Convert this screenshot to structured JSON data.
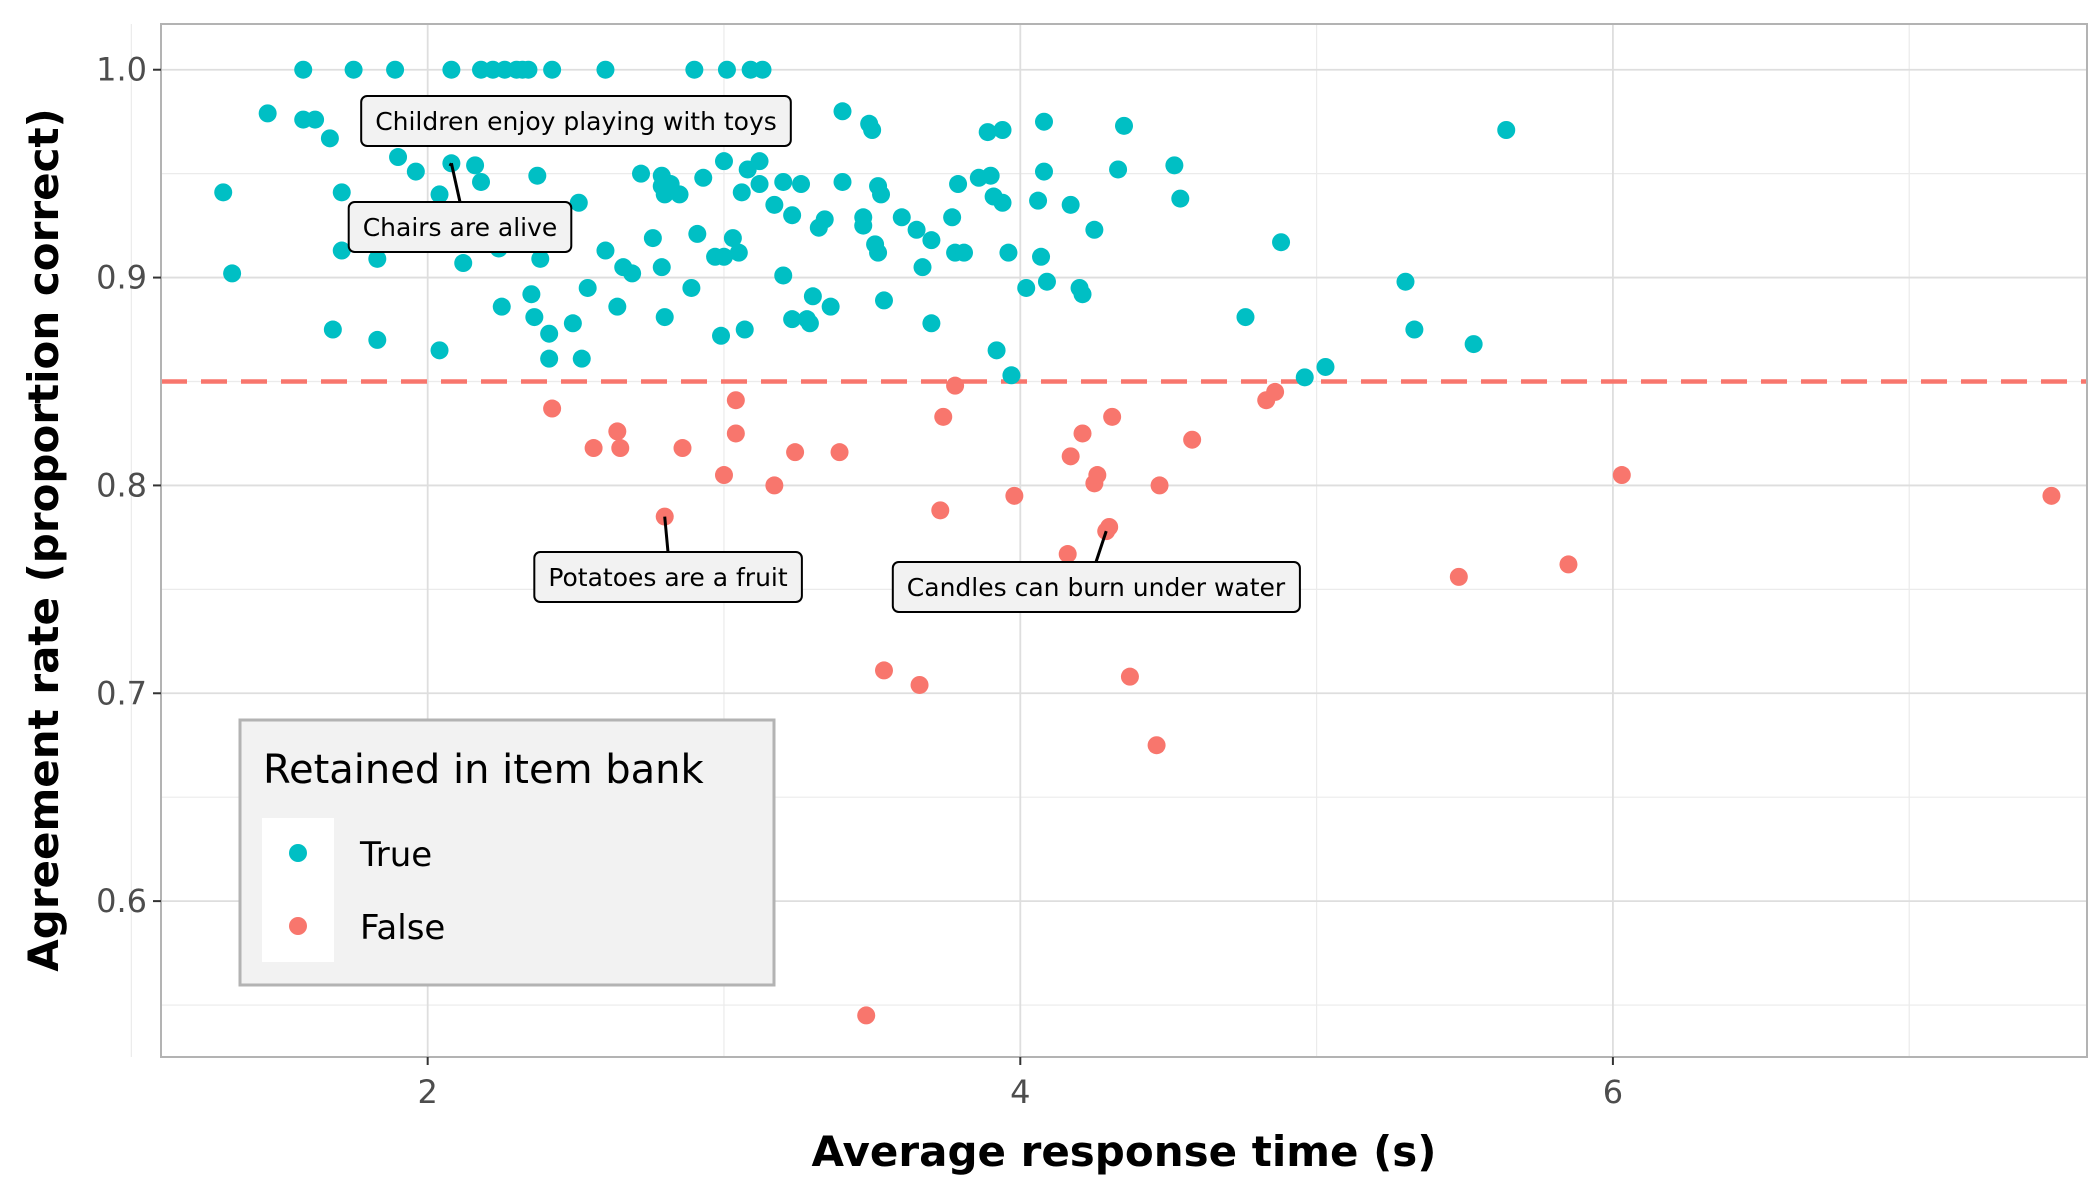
{
  "chart_data": {
    "type": "scatter",
    "title": "",
    "xlabel": "Average response time (s)",
    "ylabel": "Agreement rate (proportion correct)",
    "xlim": [
      1.1,
      7.6
    ],
    "ylim": [
      0.525,
      1.022
    ],
    "xticks": [
      2,
      4,
      6
    ],
    "xtick_labels": [
      "2",
      "4",
      "6"
    ],
    "yticks": [
      0.6,
      0.7,
      0.8,
      0.9,
      1.0
    ],
    "ytick_labels": [
      "0.6",
      "0.7",
      "0.8",
      "0.9",
      "1.0"
    ],
    "grid": true,
    "threshold": {
      "y": 0.85,
      "color": "#f8766d",
      "style": "dashed"
    },
    "legend": {
      "title": "Retained in item bank",
      "position": "bottom-left"
    },
    "series": [
      {
        "name": "True",
        "color": "#00bfc4",
        "points": [
          [
            1.31,
            0.941
          ],
          [
            1.34,
            0.902
          ],
          [
            1.46,
            0.979
          ],
          [
            1.58,
            1.0
          ],
          [
            1.58,
            0.976
          ],
          [
            1.62,
            0.976
          ],
          [
            1.67,
            0.967
          ],
          [
            1.68,
            0.875
          ],
          [
            1.71,
            0.941
          ],
          [
            1.71,
            0.913
          ],
          [
            1.75,
            1.0
          ],
          [
            1.83,
            0.909
          ],
          [
            1.83,
            0.87
          ],
          [
            1.89,
            1.0
          ],
          [
            1.9,
            0.958
          ],
          [
            1.96,
            0.951
          ],
          [
            2.04,
            0.865
          ],
          [
            2.04,
            0.94
          ],
          [
            2.08,
            1.0
          ],
          [
            2.08,
            0.955
          ],
          [
            2.12,
            0.907
          ],
          [
            2.16,
            0.954
          ],
          [
            2.18,
            0.946
          ],
          [
            2.18,
            1.0
          ],
          [
            2.22,
            1.0
          ],
          [
            2.24,
            0.914
          ],
          [
            2.25,
            0.886
          ],
          [
            2.26,
            1.0
          ],
          [
            2.3,
            1.0
          ],
          [
            2.32,
            1.0
          ],
          [
            2.34,
            1.0
          ],
          [
            2.35,
            0.892
          ],
          [
            2.36,
            0.881
          ],
          [
            2.37,
            0.949
          ],
          [
            2.38,
            0.909
          ],
          [
            2.41,
            0.861
          ],
          [
            2.41,
            0.873
          ],
          [
            2.42,
            1.0
          ],
          [
            2.49,
            0.878
          ],
          [
            2.52,
            0.861
          ],
          [
            2.51,
            0.936
          ],
          [
            2.54,
            0.895
          ],
          [
            2.6,
            0.913
          ],
          [
            2.6,
            1.0
          ],
          [
            2.64,
            0.886
          ],
          [
            2.66,
            0.905
          ],
          [
            2.69,
            0.902
          ],
          [
            2.72,
            0.95
          ],
          [
            2.76,
            0.919
          ],
          [
            2.79,
            0.949
          ],
          [
            2.79,
            0.905
          ],
          [
            2.8,
            0.881
          ],
          [
            2.79,
            0.944
          ],
          [
            2.8,
            0.94
          ],
          [
            2.82,
            0.945
          ],
          [
            2.85,
            0.94
          ],
          [
            2.89,
            0.895
          ],
          [
            2.9,
            1.0
          ],
          [
            2.91,
            0.921
          ],
          [
            2.93,
            0.948
          ],
          [
            2.97,
            0.91
          ],
          [
            2.99,
            0.872
          ],
          [
            3.0,
            0.956
          ],
          [
            3.0,
            0.91
          ],
          [
            3.01,
            1.0
          ],
          [
            3.03,
            0.919
          ],
          [
            3.05,
            0.912
          ],
          [
            3.06,
            0.941
          ],
          [
            3.07,
            0.875
          ],
          [
            3.08,
            0.952
          ],
          [
            3.09,
            1.0
          ],
          [
            3.12,
            0.945
          ],
          [
            3.12,
            0.956
          ],
          [
            3.13,
            1.0
          ],
          [
            3.17,
            0.935
          ],
          [
            3.2,
            0.901
          ],
          [
            3.23,
            0.88
          ],
          [
            3.23,
            0.93
          ],
          [
            3.2,
            0.946
          ],
          [
            3.26,
            0.945
          ],
          [
            3.28,
            0.88
          ],
          [
            3.29,
            0.878
          ],
          [
            3.3,
            0.891
          ],
          [
            3.32,
            0.924
          ],
          [
            3.34,
            0.928
          ],
          [
            3.36,
            0.886
          ],
          [
            3.4,
            0.946
          ],
          [
            3.4,
            0.98
          ],
          [
            3.47,
            0.929
          ],
          [
            3.47,
            0.925
          ],
          [
            3.49,
            0.974
          ],
          [
            3.5,
            0.971
          ],
          [
            3.51,
            0.916
          ],
          [
            3.52,
            0.912
          ],
          [
            3.52,
            0.944
          ],
          [
            3.54,
            0.889
          ],
          [
            3.53,
            0.94
          ],
          [
            3.6,
            0.929
          ],
          [
            3.65,
            0.923
          ],
          [
            3.67,
            0.905
          ],
          [
            3.7,
            0.878
          ],
          [
            3.7,
            0.918
          ],
          [
            3.77,
            0.929
          ],
          [
            3.78,
            0.912
          ],
          [
            3.79,
            0.945
          ],
          [
            3.81,
            0.912
          ],
          [
            3.86,
            0.948
          ],
          [
            3.89,
            0.97
          ],
          [
            3.9,
            0.949
          ],
          [
            3.91,
            0.939
          ],
          [
            3.92,
            0.865
          ],
          [
            3.94,
            0.971
          ],
          [
            3.94,
            0.936
          ],
          [
            3.96,
            0.912
          ],
          [
            3.97,
            0.853
          ],
          [
            4.02,
            0.895
          ],
          [
            4.06,
            0.937
          ],
          [
            4.07,
            0.91
          ],
          [
            4.08,
            0.951
          ],
          [
            4.08,
            0.975
          ],
          [
            4.09,
            0.898
          ],
          [
            4.17,
            0.935
          ],
          [
            4.2,
            0.895
          ],
          [
            4.21,
            0.892
          ],
          [
            4.25,
            0.923
          ],
          [
            4.33,
            0.952
          ],
          [
            4.35,
            0.973
          ],
          [
            4.52,
            0.954
          ],
          [
            4.54,
            0.938
          ],
          [
            4.76,
            0.881
          ],
          [
            4.88,
            0.917
          ],
          [
            4.96,
            0.852
          ],
          [
            5.03,
            0.857
          ],
          [
            5.3,
            0.898
          ],
          [
            5.33,
            0.875
          ],
          [
            5.53,
            0.868
          ],
          [
            5.64,
            0.971
          ]
        ]
      },
      {
        "name": "False",
        "color": "#f8766d",
        "points": [
          [
            2.42,
            0.837
          ],
          [
            2.56,
            0.818
          ],
          [
            2.64,
            0.826
          ],
          [
            2.65,
            0.818
          ],
          [
            2.8,
            0.785
          ],
          [
            2.86,
            0.818
          ],
          [
            3.0,
            0.805
          ],
          [
            3.04,
            0.841
          ],
          [
            3.04,
            0.825
          ],
          [
            3.17,
            0.8
          ],
          [
            3.24,
            0.816
          ],
          [
            3.39,
            0.816
          ],
          [
            3.48,
            0.545
          ],
          [
            3.54,
            0.711
          ],
          [
            3.66,
            0.704
          ],
          [
            3.73,
            0.788
          ],
          [
            3.74,
            0.833
          ],
          [
            3.78,
            0.848
          ],
          [
            3.98,
            0.795
          ],
          [
            4.16,
            0.767
          ],
          [
            4.17,
            0.814
          ],
          [
            4.21,
            0.825
          ],
          [
            4.25,
            0.801
          ],
          [
            4.26,
            0.805
          ],
          [
            4.29,
            0.778
          ],
          [
            4.3,
            0.78
          ],
          [
            4.31,
            0.833
          ],
          [
            4.37,
            0.708
          ],
          [
            4.46,
            0.675
          ],
          [
            4.47,
            0.8
          ],
          [
            4.58,
            0.822
          ],
          [
            4.83,
            0.841
          ],
          [
            4.86,
            0.845
          ],
          [
            5.48,
            0.756
          ],
          [
            5.85,
            0.762
          ],
          [
            6.03,
            0.805
          ],
          [
            7.48,
            0.795
          ]
        ]
      }
    ],
    "annotations": [
      {
        "text": "Children enjoy playing with toys",
        "x": 2.08,
        "y": 0.955
      },
      {
        "text": "Chairs are alive",
        "x": 2.08,
        "y": 0.955
      },
      {
        "text": "Potatoes are a fruit",
        "x": 2.8,
        "y": 0.785
      },
      {
        "text": "Candles can burn under water",
        "x": 4.29,
        "y": 0.778
      }
    ]
  }
}
